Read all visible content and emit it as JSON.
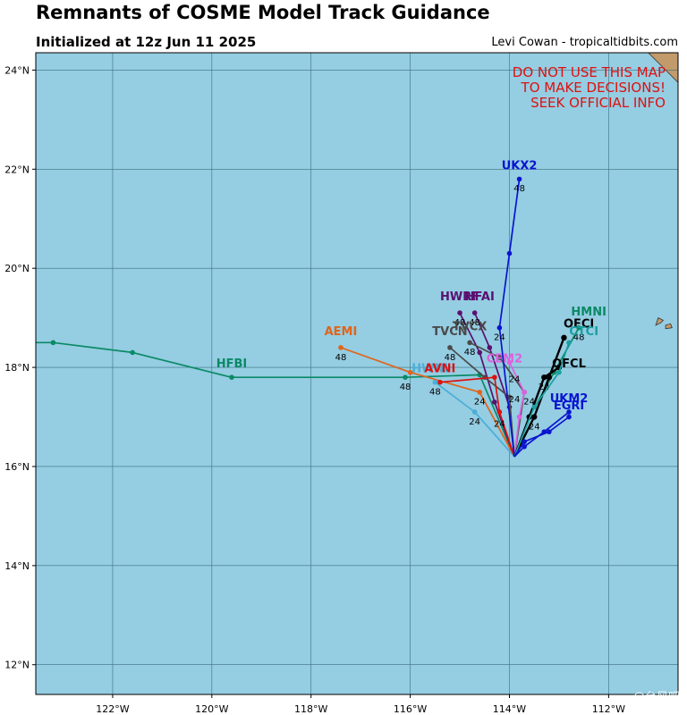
{
  "header": {
    "title": "Remnants of COSME Model Track Guidance",
    "initialized": "Initialized at 12z Jun 11 2025",
    "credit": "Levi Cowan - tropicaltidbits.com"
  },
  "warning": {
    "lines": [
      "DO NOT USE THIS MAP",
      "TO MAKE DECISIONS!",
      "SEEK OFFICIAL INFO"
    ],
    "color": "#dd1111"
  },
  "map_extent": {
    "lon_min": -123.55,
    "lon_max": -110.6,
    "lat_min": 11.4,
    "lat_max": 24.35
  },
  "colors": {
    "ocean": "#95cde2",
    "land": "#c29a6b",
    "grid": "#3d6f80"
  },
  "axis": {
    "lon_ticks": [
      {
        "value": -122,
        "label": "122°W"
      },
      {
        "value": -120,
        "label": "120°W"
      },
      {
        "value": -118,
        "label": "118°W"
      },
      {
        "value": -116,
        "label": "116°W"
      },
      {
        "value": -114,
        "label": "114°W"
      },
      {
        "value": -112,
        "label": "112°W"
      }
    ],
    "lat_ticks": [
      {
        "value": 12,
        "label": "12°N"
      },
      {
        "value": 14,
        "label": "14°N"
      },
      {
        "value": 16,
        "label": "16°N"
      },
      {
        "value": 18,
        "label": "18°N"
      },
      {
        "value": 20,
        "label": "20°N"
      },
      {
        "value": 22,
        "label": "22°N"
      },
      {
        "value": 24,
        "label": "24°N"
      }
    ]
  },
  "tracks": [
    {
      "name": "HFBI",
      "color": "#0a8a66",
      "points": [
        [
          -113.9,
          16.2
        ],
        [
          -114.6,
          17.85
        ],
        [
          -116.1,
          17.8
        ],
        [
          -119.6,
          17.8
        ],
        [
          -121.6,
          18.3
        ],
        [
          -123.2,
          18.5
        ],
        [
          -124.0,
          18.5
        ]
      ],
      "hour_labels": [
        {
          "text": "48",
          "lon": -116.1,
          "lat": 17.55
        }
      ]
    },
    {
      "name": "HMNI",
      "color": "#0a8a66",
      "points": [
        [
          -113.9,
          16.2
        ],
        [
          -113.6,
          17.0
        ],
        [
          -113.1,
          17.9
        ],
        [
          -112.6,
          18.8
        ]
      ],
      "hour_labels": [
        {
          "text": "48",
          "lon": -112.6,
          "lat": 18.55
        }
      ]
    },
    {
      "name": "AEMI",
      "color": "#e0641a",
      "points": [
        [
          -113.9,
          16.2
        ],
        [
          -114.6,
          17.5
        ],
        [
          -116.0,
          17.9
        ],
        [
          -117.4,
          18.4
        ]
      ],
      "hour_labels": [
        {
          "text": "48",
          "lon": -117.4,
          "lat": 18.15
        },
        {
          "text": "24",
          "lon": -114.6,
          "lat": 17.25
        }
      ]
    },
    {
      "name": "HWRF",
      "color": "#5a1070",
      "points": [
        [
          -113.9,
          16.2
        ],
        [
          -114.3,
          17.3
        ],
        [
          -114.6,
          18.3
        ],
        [
          -115.0,
          19.1
        ]
      ],
      "hour_labels": [
        {
          "text": "48",
          "lon": -115.0,
          "lat": 18.85
        }
      ]
    },
    {
      "name": "HFAI",
      "color": "#5a1070",
      "points": [
        [
          -113.9,
          16.2
        ],
        [
          -114.0,
          17.2
        ],
        [
          -114.4,
          18.4
        ],
        [
          -114.7,
          19.1
        ]
      ],
      "hour_labels": [
        {
          "text": "48",
          "lon": -114.7,
          "lat": 18.85
        }
      ]
    },
    {
      "name": "TVCN",
      "color": "#4a4a4a",
      "points": [
        [
          -113.9,
          16.2
        ],
        [
          -114.0,
          17.4
        ],
        [
          -114.5,
          17.8
        ],
        [
          -115.2,
          18.4
        ]
      ],
      "hour_labels": [
        {
          "text": "48",
          "lon": -115.2,
          "lat": 18.15
        }
      ]
    },
    {
      "name": "TVCX",
      "color": "#4a4a4a",
      "points": [
        [
          -113.9,
          16.2
        ],
        [
          -113.7,
          17.5
        ],
        [
          -114.2,
          18.2
        ],
        [
          -114.8,
          18.5
        ]
      ],
      "hour_labels": [
        {
          "text": "48",
          "lon": -114.8,
          "lat": 18.25
        }
      ]
    },
    {
      "name": "HWNI",
      "color": "#4aaed8",
      "points": [
        [
          -113.9,
          16.2
        ],
        [
          -114.7,
          17.1
        ],
        [
          -115.5,
          17.7
        ]
      ],
      "hour_labels": [
        {
          "text": "48",
          "lon": -115.5,
          "lat": 17.45
        },
        {
          "text": "24",
          "lon": -114.7,
          "lat": 16.85
        }
      ]
    },
    {
      "name": "AVNI",
      "color": "#dd1111",
      "points": [
        [
          -113.9,
          16.2
        ],
        [
          -114.2,
          17.1
        ],
        [
          -114.3,
          17.8
        ],
        [
          -115.4,
          17.7
        ]
      ],
      "hour_labels": [
        {
          "text": "24",
          "lon": -114.2,
          "lat": 16.8
        }
      ]
    },
    {
      "name": "CEM2",
      "color": "#e060e0",
      "points": [
        [
          -113.9,
          16.2
        ],
        [
          -113.8,
          17.0
        ],
        [
          -113.7,
          17.5
        ],
        [
          -114.0,
          18.1
        ]
      ],
      "hour_labels": [
        {
          "text": "24",
          "lon": -113.9,
          "lat": 17.3
        }
      ]
    },
    {
      "name": "UKX2",
      "color": "#0a14d0",
      "points": [
        [
          -113.9,
          16.2
        ],
        [
          -114.2,
          18.8
        ],
        [
          -114.0,
          20.3
        ],
        [
          -113.8,
          21.8
        ]
      ],
      "hour_labels": [
        {
          "text": "48",
          "lon": -113.8,
          "lat": 21.55
        },
        {
          "text": "24",
          "lon": -114.2,
          "lat": 18.55
        }
      ]
    },
    {
      "name": "OFCI",
      "color": "#000000",
      "points": [
        [
          -113.9,
          16.2
        ],
        [
          -113.5,
          17.0
        ],
        [
          -113.2,
          17.8
        ],
        [
          -112.9,
          18.6
        ]
      ],
      "hour_labels": [
        {
          "text": "24",
          "lon": -113.5,
          "lat": 16.75
        }
      ]
    },
    {
      "name": "OFCL",
      "color": "#000000",
      "points": [
        [
          -113.9,
          16.2
        ],
        [
          -113.6,
          17.0
        ],
        [
          -113.3,
          17.8
        ],
        [
          -113.0,
          18.0
        ]
      ],
      "hour_labels": [
        {
          "text": "24",
          "lon": -113.3,
          "lat": 17.55
        }
      ]
    },
    {
      "name": "CTCI",
      "color": "#1aa0a0",
      "points": [
        [
          -113.9,
          16.2
        ],
        [
          -113.5,
          17.2
        ],
        [
          -113.0,
          17.9
        ],
        [
          -112.8,
          18.5
        ]
      ],
      "hour_labels": [
        {
          "text": "24",
          "lon": -113.6,
          "lat": 17.25
        }
      ]
    },
    {
      "name": "UKM2",
      "color": "#0a14d0",
      "points": [
        [
          -113.9,
          16.2
        ],
        [
          -113.7,
          16.4
        ],
        [
          -113.3,
          16.7
        ],
        [
          -112.8,
          17.1
        ]
      ],
      "hour_labels": []
    },
    {
      "name": "EGRI",
      "color": "#0a14d0",
      "points": [
        [
          -113.9,
          16.2
        ],
        [
          -113.7,
          16.5
        ],
        [
          -113.2,
          16.7
        ],
        [
          -112.8,
          17.0
        ]
      ],
      "hour_labels": [
        {
          "text": "24",
          "lon": -113.9,
          "lat": 17.7
        }
      ]
    }
  ],
  "track_labels": [
    {
      "text": "HFBI",
      "color": "#0a8a66",
      "lon": -119.6,
      "lat": 18.0
    },
    {
      "text": "HMNI",
      "color": "#0a8a66",
      "lon": -112.4,
      "lat": 19.05
    },
    {
      "text": "AEMI",
      "color": "#e0641a",
      "lon": -117.4,
      "lat": 18.65
    },
    {
      "text": "HWRF",
      "color": "#5a1070",
      "lon": -115.0,
      "lat": 19.35
    },
    {
      "text": "HFAI",
      "color": "#5a1070",
      "lon": -114.6,
      "lat": 19.35
    },
    {
      "text": "TVCN",
      "color": "#4a4a4a",
      "lon": -115.2,
      "lat": 18.65
    },
    {
      "text": "TVCX",
      "color": "#4a4a4a",
      "lon": -114.8,
      "lat": 18.75
    },
    {
      "text": "HWNI",
      "color": "#4aaed8",
      "lon": -115.6,
      "lat": 17.9
    },
    {
      "text": "AVNI",
      "color": "#dd1111",
      "lon": -115.4,
      "lat": 17.9
    },
    {
      "text": "CEM2",
      "color": "#e060e0",
      "lon": -114.1,
      "lat": 18.1
    },
    {
      "text": "UKX2",
      "color": "#0a14d0",
      "lon": -113.8,
      "lat": 22.0
    },
    {
      "text": "OFCI",
      "color": "#000000",
      "lon": -112.6,
      "lat": 18.8
    },
    {
      "text": "OFCL",
      "color": "#000000",
      "lon": -112.8,
      "lat": 18.0
    },
    {
      "text": "CTCI",
      "color": "#1aa0a0",
      "lon": -112.5,
      "lat": 18.65
    },
    {
      "text": "UKM2",
      "color": "#0a14d0",
      "lon": -112.8,
      "lat": 17.3
    },
    {
      "text": "EGRI",
      "color": "#0a14d0",
      "lon": -112.8,
      "lat": 17.15
    }
  ],
  "land": [
    {
      "name": "baja-coast-corner",
      "points": [
        [
          -111.2,
          24.35
        ],
        [
          -110.6,
          24.35
        ],
        [
          -110.6,
          23.75
        ],
        [
          -110.9,
          24.05
        ]
      ]
    },
    {
      "name": "revillagigedo-island",
      "points": [
        [
          -110.85,
          18.85
        ],
        [
          -110.75,
          18.88
        ],
        [
          -110.72,
          18.8
        ],
        [
          -110.85,
          18.78
        ]
      ]
    },
    {
      "name": "socorro-island",
      "points": [
        [
          -111.05,
          18.85
        ],
        [
          -110.95,
          18.9
        ],
        [
          -110.9,
          18.95
        ],
        [
          -111.0,
          19.0
        ]
      ]
    }
  ],
  "watermark": "@台风吧"
}
